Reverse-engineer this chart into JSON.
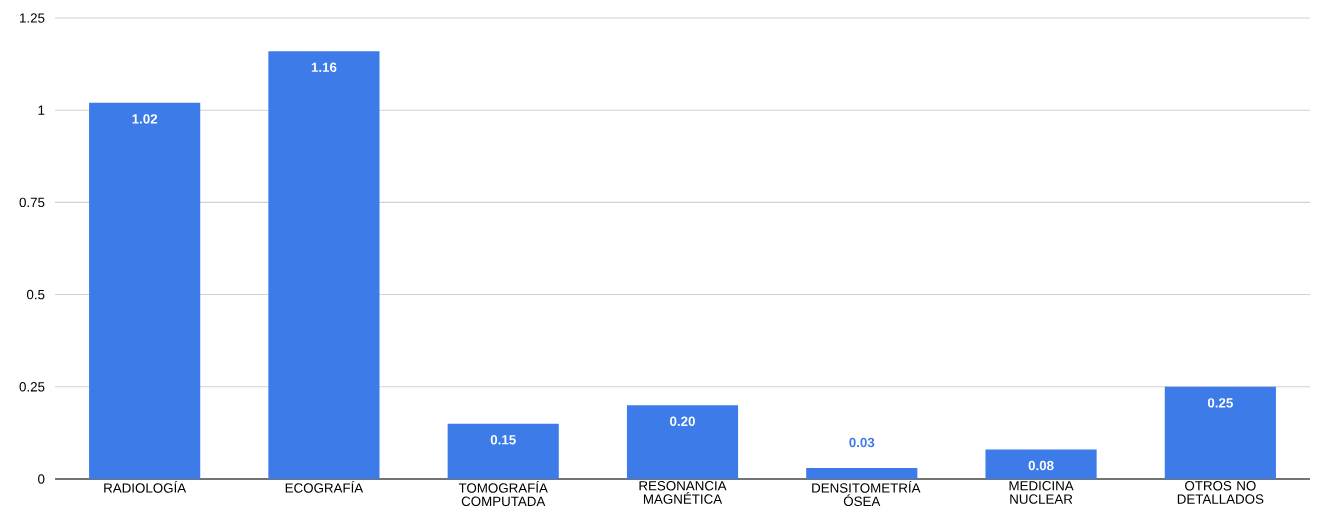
{
  "chart_data": {
    "type": "bar",
    "categories": [
      "RADIOLOGÍA",
      "ECOGRAFÍA",
      "TOMOGRAFÍA COMPUTADA",
      "RESONANCIA MAGNÉTICA",
      "DENSITOMETRÍA ÓSEA",
      "MEDICINA NUCLEAR",
      "OTROS NO DETALLADOS"
    ],
    "values": [
      1.02,
      1.16,
      0.15,
      0.2,
      0.03,
      0.08,
      0.25
    ],
    "value_labels": [
      "1.02",
      "1.16",
      "0.15",
      "0.20",
      "0.03",
      "0.08",
      "0.25"
    ],
    "color": "#3c7be8",
    "ylim": [
      0,
      1.25
    ],
    "yticks": [
      0,
      0.25,
      0.5,
      0.75,
      1,
      1.25
    ],
    "grid": "y"
  }
}
